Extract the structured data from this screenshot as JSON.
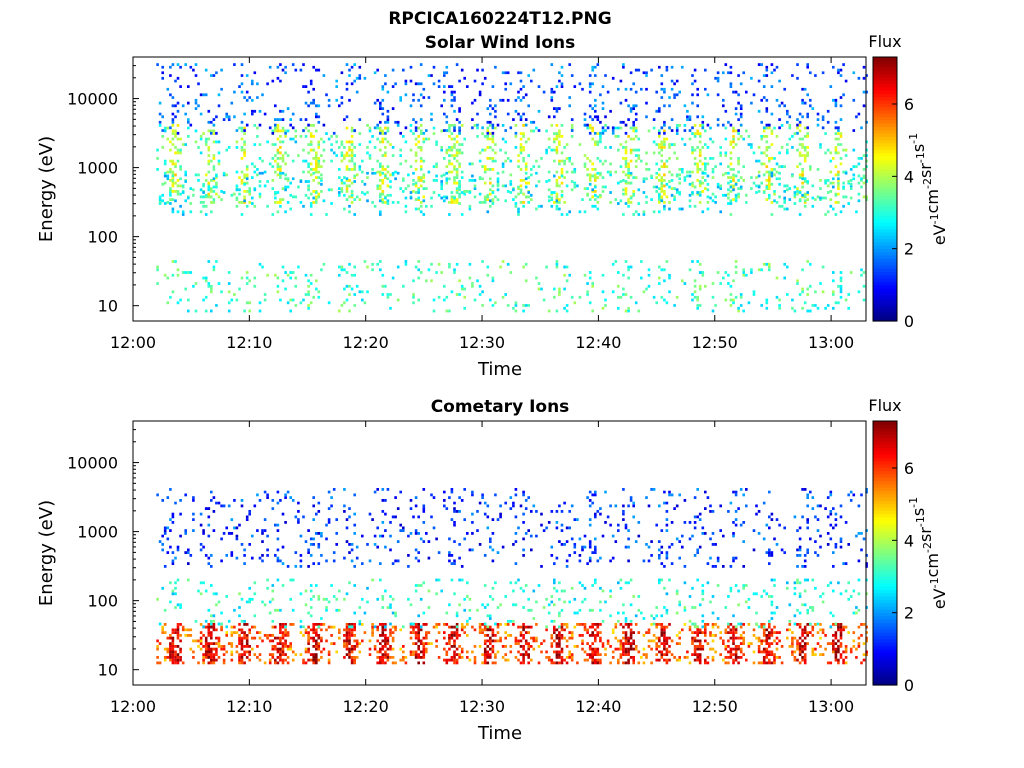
{
  "figure_title": "RPCICA160224T12.PNG",
  "colors": {
    "colormap": "jet",
    "axis": "#000000",
    "background": "#ffffff"
  },
  "chart_data": [
    {
      "type": "heatmap",
      "title": "Solar Wind Ions",
      "xlabel": "Time",
      "ylabel": "Energy (eV)",
      "yscale": "log",
      "xlim": [
        "12:00",
        "13:03"
      ],
      "ylim": [
        6,
        40000
      ],
      "x_ticks": [
        "12:00",
        "12:10",
        "12:20",
        "12:30",
        "12:40",
        "12:50",
        "13:00"
      ],
      "y_ticks": [
        "10",
        "100",
        "1000",
        "10000"
      ],
      "colorbar": {
        "label": "Flux",
        "unit_label": "eV-1cm-2sr-1s-1",
        "range": [
          0,
          7.3
        ],
        "ticks": [
          "0",
          "2",
          "4",
          "6"
        ]
      },
      "grid": false,
      "time_range": [
        "12:02",
        "13:03"
      ],
      "energy_bands": [
        {
          "energy_range": [
            300,
            4000
          ],
          "typical_level": 3.0,
          "description": "solar wind core, bursts ~every 3 min at 1000-3000 eV"
        },
        {
          "energy_range": [
            200,
            800
          ],
          "typical_level": 2.8
        },
        {
          "energy_range": [
            8,
            45
          ],
          "typical_level": 3.2
        },
        {
          "energy_range": [
            3000,
            30000
          ],
          "typical_level": 1.5
        }
      ]
    },
    {
      "type": "heatmap",
      "title": "Cometary Ions",
      "xlabel": "Time",
      "ylabel": "Energy (eV)",
      "yscale": "log",
      "xlim": [
        "12:00",
        "13:03"
      ],
      "ylim": [
        6,
        40000
      ],
      "x_ticks": [
        "12:00",
        "12:10",
        "12:20",
        "12:30",
        "12:40",
        "12:50",
        "13:00"
      ],
      "y_ticks": [
        "10",
        "100",
        "1000",
        "10000"
      ],
      "colorbar": {
        "label": "Flux",
        "unit_label": "eV-1cm-2sr-1s-1",
        "range": [
          0,
          7.3
        ],
        "ticks": [
          "0",
          "2",
          "4",
          "6"
        ]
      },
      "grid": false,
      "time_range": [
        "12:02",
        "13:03"
      ],
      "energy_bands": [
        {
          "energy_range": [
            12,
            45
          ],
          "typical_level": 5.5,
          "description": "intense cometary ion peaks ~every 3 min"
        },
        {
          "energy_range": [
            40,
            200
          ],
          "typical_level": 3.0
        },
        {
          "energy_range": [
            300,
            4000
          ],
          "typical_level": 1.3
        }
      ]
    }
  ]
}
